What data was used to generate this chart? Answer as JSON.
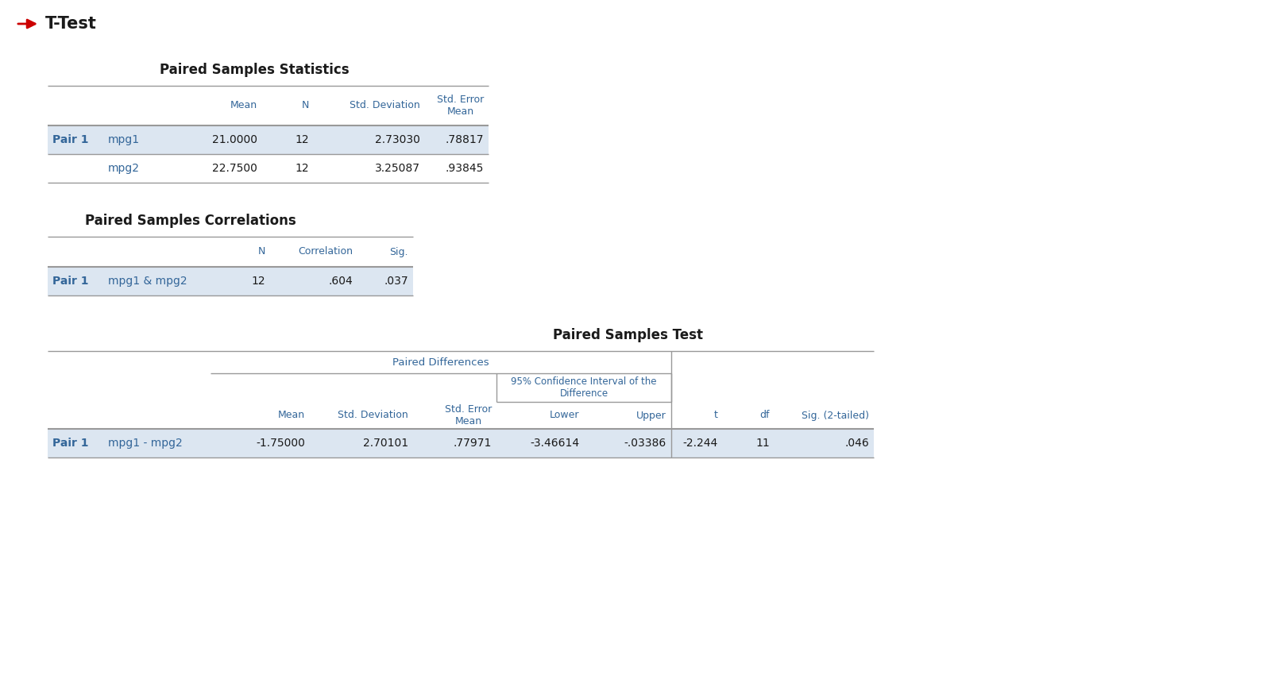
{
  "title": "T-Test",
  "bg_color": "#ffffff",
  "arrow_color": "#cc0000",
  "text_black": "#1a1a1a",
  "text_blue": "#336699",
  "line_color": "#999999",
  "row_bg_light": "#dce6f1",
  "row_bg_white": "#ffffff",
  "stats_title": "Paired Samples Statistics",
  "stats_col_labels": [
    "",
    "",
    "Mean",
    "N",
    "Std. Deviation",
    "Std. Error\nMean"
  ],
  "stats_rows": [
    [
      "Pair 1",
      "mpg1",
      "21.0000",
      "12",
      "2.73030",
      ".78817"
    ],
    [
      "",
      "mpg2",
      "22.7500",
      "12",
      "3.25087",
      ".93845"
    ]
  ],
  "corr_title": "Paired Samples Correlations",
  "corr_col_labels": [
    "",
    "",
    "N",
    "Correlation",
    "Sig."
  ],
  "corr_rows": [
    [
      "Pair 1",
      "mpg1 & mpg2",
      "12",
      ".604",
      ".037"
    ]
  ],
  "test_title": "Paired Samples Test",
  "test_span_label": "Paired Differences",
  "test_ci_label": "95% Confidence Interval of the\nDifference",
  "test_col_labels": [
    "",
    "",
    "Mean",
    "Std. Deviation",
    "Std. Error\nMean",
    "Lower",
    "Upper",
    "t",
    "df",
    "Sig. (2-tailed)"
  ],
  "test_rows": [
    [
      "Pair 1",
      "mpg1 - mpg2",
      "-1.75000",
      "2.70101",
      ".77971",
      "-3.46614",
      "-.03386",
      "-2.244",
      "11",
      ".046"
    ]
  ],
  "fig_w": 16.0,
  "fig_h": 8.65,
  "dpi": 100
}
